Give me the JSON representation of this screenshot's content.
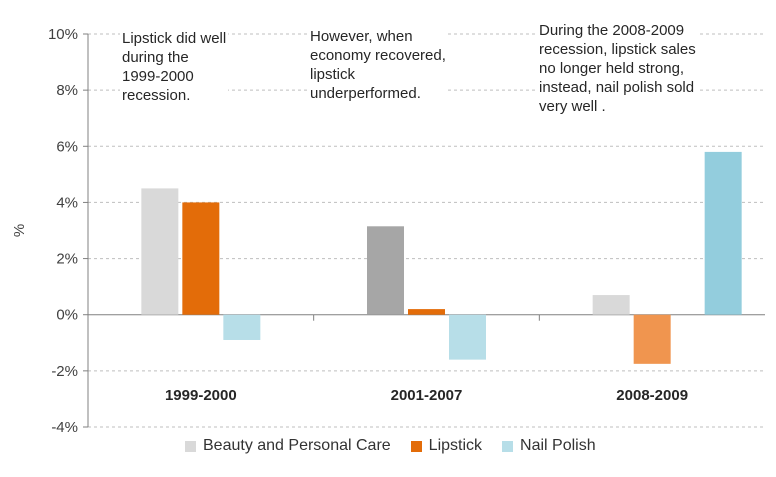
{
  "chart_data": {
    "type": "bar",
    "categories": [
      "1999-2000",
      "2001-2007",
      "2008-2009"
    ],
    "series": [
      {
        "name": "Beauty and Personal Care",
        "values": [
          4.5,
          3.15,
          0.7
        ],
        "color": "#d9d9d9",
        "bar_colors": [
          "#d9d9d9",
          "#a6a6a6",
          "#d9d9d9"
        ]
      },
      {
        "name": "Lipstick",
        "values": [
          4.0,
          0.2,
          -1.75
        ],
        "color": "#e36c09",
        "bar_colors": [
          "#e36c09",
          "#e36c09",
          "#f0954f"
        ]
      },
      {
        "name": "Nail Polish",
        "values": [
          -0.9,
          -1.6,
          5.8
        ],
        "color": "#b7dee8",
        "bar_colors": [
          "#b7dee8",
          "#b7dee8",
          "#93cddd"
        ]
      }
    ],
    "ylabel": "%",
    "ylim": [
      -4,
      10
    ],
    "yticks": [
      "10%",
      "8%",
      "6%",
      "4%",
      "2%",
      "0%",
      "-2%",
      "-4%"
    ],
    "ytick_values": [
      10,
      8,
      6,
      4,
      2,
      0,
      -2,
      -4
    ],
    "grid": true,
    "legend_position": "bottom",
    "annotations": [
      {
        "lines": [
          "Lipstick did well",
          "during the",
          "1999-2000",
          "recession."
        ]
      },
      {
        "lines": [
          "However, when",
          "economy recovered,",
          "lipstick",
          "underperformed."
        ]
      },
      {
        "lines": [
          "During the 2008-2009",
          "recession, lipstick sales",
          "no longer held strong,",
          "instead,  nail polish sold",
          "very well ."
        ]
      }
    ]
  }
}
